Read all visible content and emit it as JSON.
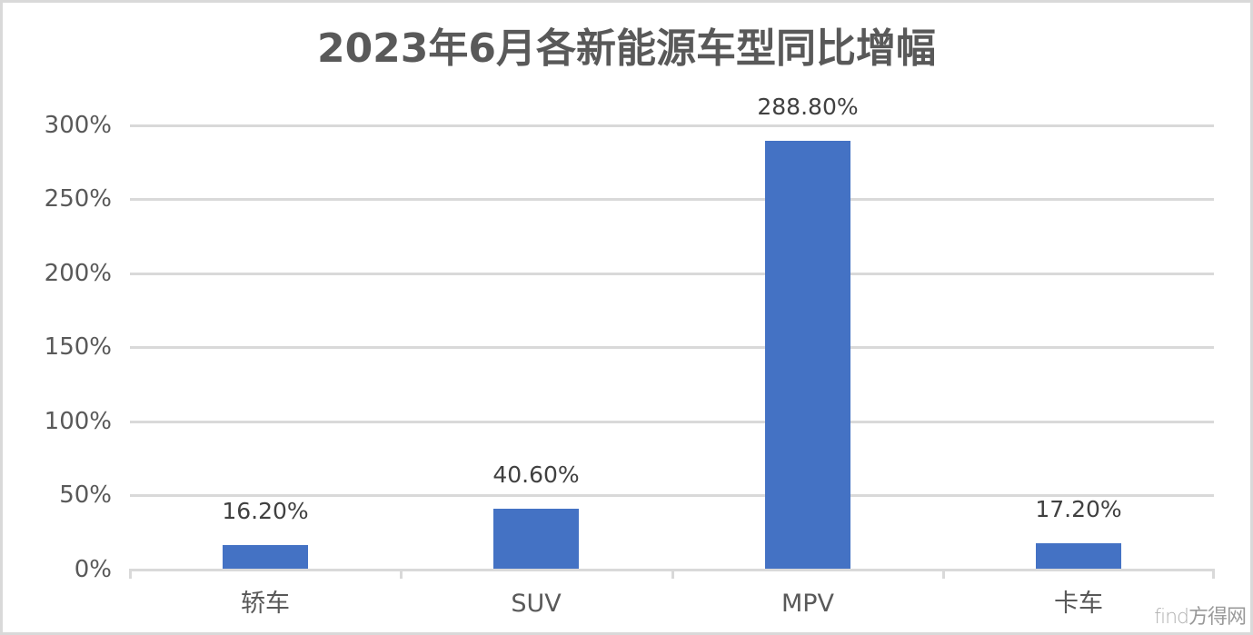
{
  "chart_data": {
    "type": "bar",
    "title": "2023年6月各新能源车型同比增幅",
    "categories": [
      "轿车",
      "SUV",
      "MPV",
      "卡车"
    ],
    "values": [
      16.2,
      40.6,
      288.8,
      17.2
    ],
    "data_labels": [
      "16.20%",
      "40.60%",
      "288.80%",
      "17.20%"
    ],
    "xlabel": "",
    "ylabel": "",
    "ylim": [
      0,
      300
    ],
    "yticks": [
      "0%",
      "50%",
      "100%",
      "150%",
      "200%",
      "250%",
      "300%"
    ],
    "grid": true,
    "legend": "none",
    "bar_color": "#4472C4"
  },
  "watermark": {
    "latin": "find",
    "cjk": "方得网"
  }
}
